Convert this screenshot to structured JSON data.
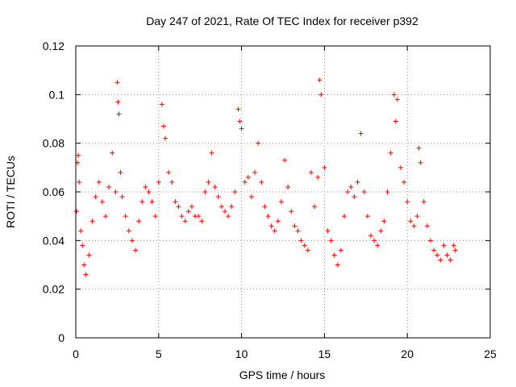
{
  "chart_data": {
    "type": "scatter",
    "title": "Day 247 of 2021, Rate Of TEC Index for receiver p392",
    "xlabel": "GPS time / hours",
    "ylabel": "ROTI / TECUs",
    "xlim": [
      0,
      25
    ],
    "ylim": [
      0,
      0.12
    ],
    "x_ticks": [
      0,
      5,
      10,
      15,
      20,
      25
    ],
    "x_tick_labels": [
      "0",
      "5",
      "10",
      "15",
      "20",
      "25"
    ],
    "y_ticks": [
      0,
      0.02,
      0.04,
      0.06,
      0.08,
      0.1,
      0.12
    ],
    "y_tick_labels": [
      "0",
      "0.02",
      "0.04",
      "0.06",
      "0.08",
      "0.1",
      "0.12"
    ],
    "grid": true,
    "marker": "+",
    "series": [
      {
        "name": "ROTI",
        "color": "#ff0000",
        "x": [
          0.05,
          0.1,
          0.15,
          0.2,
          0.3,
          0.4,
          0.5,
          0.6,
          0.8,
          1.0,
          1.2,
          1.4,
          1.6,
          1.8,
          2.0,
          2.2,
          2.4,
          2.5,
          2.55,
          2.6,
          2.7,
          2.8,
          3.0,
          3.2,
          3.4,
          3.6,
          3.8,
          4.0,
          4.2,
          4.4,
          4.6,
          4.8,
          5.0,
          5.2,
          5.3,
          5.4,
          5.6,
          5.8,
          6.0,
          6.2,
          6.4,
          6.6,
          6.8,
          7.0,
          7.2,
          7.4,
          7.6,
          7.8,
          8.0,
          8.2,
          8.4,
          8.6,
          8.8,
          9.0,
          9.2,
          9.4,
          9.6,
          9.8,
          9.9,
          10.0,
          10.2,
          10.4,
          10.6,
          10.8,
          11.0,
          11.2,
          11.4,
          11.6,
          11.8,
          12.0,
          12.2,
          12.4,
          12.6,
          12.8,
          13.0,
          13.2,
          13.4,
          13.6,
          13.8,
          14.0,
          14.2,
          14.4,
          14.6,
          14.7,
          14.8,
          15.0,
          15.2,
          15.4,
          15.6,
          15.8,
          16.0,
          16.2,
          16.4,
          16.6,
          16.8,
          17.0,
          17.2,
          17.4,
          17.6,
          17.8,
          18.0,
          18.2,
          18.4,
          18.6,
          18.8,
          19.0,
          19.2,
          19.3,
          19.4,
          19.6,
          19.8,
          20.0,
          20.2,
          20.4,
          20.6,
          20.7,
          20.8,
          21.0,
          21.2,
          21.4,
          21.6,
          21.8,
          22.0,
          22.2,
          22.4,
          22.6,
          22.8,
          22.9
        ],
        "y": [
          0.052,
          0.072,
          0.075,
          0.064,
          0.044,
          0.038,
          0.03,
          0.026,
          0.034,
          0.048,
          0.058,
          0.064,
          0.056,
          0.05,
          0.062,
          0.076,
          0.06,
          0.105,
          0.097,
          0.092,
          0.068,
          0.058,
          0.05,
          0.044,
          0.04,
          0.036,
          0.048,
          0.056,
          0.062,
          0.06,
          0.056,
          0.05,
          0.064,
          0.096,
          0.087,
          0.082,
          0.068,
          0.064,
          0.056,
          0.054,
          0.05,
          0.048,
          0.052,
          0.054,
          0.05,
          0.05,
          0.048,
          0.06,
          0.064,
          0.076,
          0.062,
          0.058,
          0.054,
          0.052,
          0.05,
          0.054,
          0.06,
          0.094,
          0.089,
          0.086,
          0.064,
          0.066,
          0.058,
          0.068,
          0.08,
          0.064,
          0.054,
          0.05,
          0.046,
          0.044,
          0.048,
          0.056,
          0.073,
          0.062,
          0.052,
          0.046,
          0.044,
          0.04,
          0.038,
          0.036,
          0.068,
          0.054,
          0.066,
          0.106,
          0.1,
          0.07,
          0.044,
          0.04,
          0.034,
          0.03,
          0.036,
          0.05,
          0.06,
          0.062,
          0.058,
          0.064,
          0.084,
          0.06,
          0.05,
          0.042,
          0.04,
          0.038,
          0.044,
          0.048,
          0.06,
          0.076,
          0.1,
          0.089,
          0.098,
          0.07,
          0.064,
          0.056,
          0.048,
          0.046,
          0.05,
          0.078,
          0.072,
          0.056,
          0.046,
          0.04,
          0.036,
          0.034,
          0.032,
          0.038,
          0.034,
          0.032,
          0.038,
          0.036
        ]
      }
    ]
  }
}
